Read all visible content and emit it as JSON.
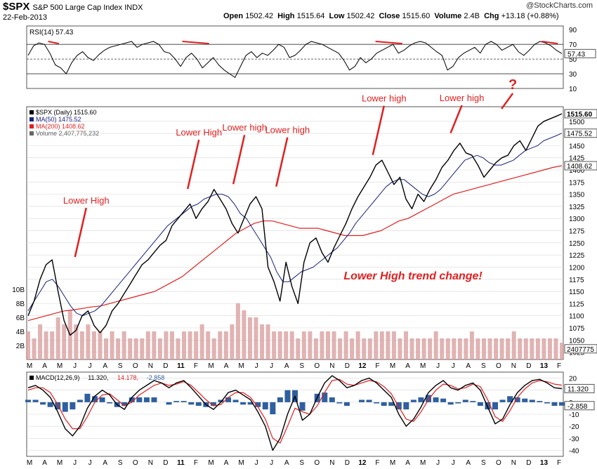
{
  "header": {
    "symbol": "$SPX",
    "name": "S&P 500 Large Cap Index",
    "exchange": "INDX",
    "date": "22-Feb-2013",
    "open_label": "Open",
    "open": "1502.42",
    "high_label": "High",
    "high": "1515.64",
    "low_label": "Low",
    "low": "1502.42",
    "close_label": "Close",
    "close": "1515.60",
    "volume_label": "Volume",
    "volume": "2.4B",
    "chg_label": "Chg",
    "chg": "+13.18 (+0.88%)",
    "credit": "@StockCharts.com"
  },
  "colors": {
    "price": "#000000",
    "ma50": "#1a237e",
    "ma200": "#e02020",
    "volume": "#d9a0a0",
    "macd_hist": "#2f5f9f",
    "annotation": "#e02020",
    "grid": "#d8d8d8"
  },
  "chart_data": [
    {
      "id": "rsi",
      "type": "line",
      "legend": "RSI(14) 57.43",
      "y_ticks": [
        90,
        70,
        50,
        30,
        10
      ],
      "ylim": [
        10,
        95
      ],
      "reference_lines": [
        70,
        50,
        30
      ],
      "last_value": "57.43",
      "series": [
        {
          "values": [
            55,
            68,
            72,
            70,
            58,
            42,
            38,
            30,
            45,
            55,
            60,
            52,
            48,
            56,
            62,
            66,
            68,
            70,
            72,
            74,
            66,
            70,
            72,
            74,
            70,
            60,
            58,
            50,
            40,
            52,
            58,
            50,
            38,
            45,
            52,
            42,
            35,
            30,
            25,
            40,
            55,
            60,
            52,
            58,
            55,
            62,
            70,
            66,
            52,
            55,
            62,
            70,
            74,
            72,
            70,
            66,
            62,
            58,
            48,
            35,
            40,
            52,
            45,
            50,
            58,
            62,
            66,
            70,
            58,
            62,
            68,
            72,
            74,
            72,
            66,
            60,
            55,
            35,
            40,
            52,
            58,
            62,
            66,
            58,
            70,
            74,
            70,
            62,
            66,
            70,
            60,
            55,
            62,
            70,
            74,
            72,
            68,
            62,
            57.43
          ]
        }
      ]
    },
    {
      "id": "price",
      "type": "line",
      "legend": [
        {
          "name": "$SPX (Daily) 1515.60",
          "color": "#000000"
        },
        {
          "name": "MA(50) 1475.52",
          "color": "#1a237e"
        },
        {
          "name": "MA(200) 1408.62",
          "color": "#e02020"
        },
        {
          "name": "Volume 2,407,775,232",
          "color": "#888888"
        }
      ],
      "x_labels": [
        "M",
        "A",
        "M",
        "J",
        "J",
        "A",
        "S",
        "O",
        "N",
        "D",
        "11",
        "F",
        "M",
        "A",
        "M",
        "J",
        "J",
        "A",
        "S",
        "O",
        "N",
        "D",
        "12",
        "F",
        "M",
        "A",
        "M",
        "J",
        "J",
        "A",
        "S",
        "O",
        "N",
        "D",
        "13",
        "F"
      ],
      "y_ticks": [
        1500,
        1475,
        1450,
        1425,
        1400,
        1375,
        1350,
        1325,
        1300,
        1275,
        1250,
        1225,
        1200,
        1175,
        1150,
        1125,
        1100,
        1075,
        1050,
        1025
      ],
      "ylim": [
        1010,
        1530
      ],
      "volume_ticks": [
        "10B",
        "8B",
        "6B",
        "4B",
        "2B"
      ],
      "volume_max": 12,
      "price_tags": [
        {
          "value": 1515.6,
          "label": "1515.60"
        },
        {
          "value": 1475.52,
          "label": "1475.52"
        },
        {
          "value": 1408.62,
          "label": "1408.62"
        },
        {
          "value": 1032,
          "label": "2407775"
        }
      ],
      "series": [
        {
          "name": "$SPX",
          "values": [
            1100,
            1130,
            1175,
            1205,
            1215,
            1150,
            1090,
            1060,
            1070,
            1100,
            1110,
            1080,
            1065,
            1080,
            1110,
            1125,
            1145,
            1165,
            1185,
            1205,
            1215,
            1230,
            1245,
            1255,
            1285,
            1300,
            1315,
            1330,
            1300,
            1320,
            1335,
            1360,
            1340,
            1320,
            1290,
            1270,
            1300,
            1330,
            1345,
            1320,
            1200,
            1170,
            1130,
            1210,
            1160,
            1125,
            1210,
            1250,
            1260,
            1230,
            1210,
            1240,
            1265,
            1290,
            1320,
            1345,
            1365,
            1385,
            1410,
            1420,
            1395,
            1370,
            1385,
            1340,
            1320,
            1350,
            1335,
            1360,
            1380,
            1405,
            1420,
            1440,
            1455,
            1435,
            1430,
            1410,
            1385,
            1400,
            1415,
            1425,
            1430,
            1450,
            1460,
            1440,
            1465,
            1490,
            1500,
            1505,
            1510,
            1515.6
          ]
        },
        {
          "name": "MA(50)",
          "values": [
            1110,
            1130,
            1150,
            1170,
            1175,
            1160,
            1140,
            1120,
            1105,
            1100,
            1105,
            1110,
            1120,
            1135,
            1150,
            1165,
            1180,
            1195,
            1210,
            1225,
            1240,
            1255,
            1270,
            1285,
            1295,
            1305,
            1315,
            1325,
            1330,
            1340,
            1345,
            1350,
            1350,
            1345,
            1330,
            1310,
            1300,
            1280,
            1260,
            1240,
            1220,
            1190,
            1170,
            1170,
            1180,
            1190,
            1195,
            1200,
            1210,
            1220,
            1230,
            1240,
            1255,
            1270,
            1290,
            1305,
            1320,
            1335,
            1350,
            1365,
            1375,
            1380,
            1380,
            1370,
            1360,
            1350,
            1345,
            1350,
            1360,
            1375,
            1390,
            1405,
            1420,
            1425,
            1430,
            1425,
            1415,
            1410,
            1410,
            1415,
            1420,
            1430,
            1440,
            1445,
            1450,
            1460,
            1465,
            1470,
            1475.52
          ]
        },
        {
          "name": "MA(200)",
          "values": [
            1090,
            1095,
            1100,
            1105,
            1110,
            1112,
            1115,
            1118,
            1120,
            1125,
            1130,
            1135,
            1140,
            1145,
            1150,
            1160,
            1170,
            1180,
            1195,
            1210,
            1225,
            1240,
            1255,
            1270,
            1280,
            1290,
            1295,
            1295,
            1290,
            1285,
            1280,
            1280,
            1280,
            1275,
            1270,
            1265,
            1265,
            1265,
            1270,
            1275,
            1285,
            1295,
            1300,
            1310,
            1320,
            1330,
            1340,
            1350,
            1355,
            1360,
            1365,
            1370,
            1375,
            1380,
            1385,
            1390,
            1395,
            1400,
            1405,
            1408.62
          ]
        },
        {
          "name": "Volume",
          "values": [
            4,
            3,
            5,
            4,
            4,
            6,
            5,
            7,
            5,
            4,
            5,
            4,
            4,
            3,
            4,
            3,
            4,
            3,
            3,
            3,
            4,
            4,
            3,
            4,
            4,
            3,
            4,
            4,
            4,
            5,
            4,
            3,
            4,
            4,
            5,
            8,
            7,
            6,
            6,
            5,
            5,
            4,
            4,
            4,
            4,
            3,
            4,
            4,
            3,
            4,
            4,
            4,
            3,
            4,
            3,
            4,
            3,
            3,
            4,
            4,
            4,
            4,
            3,
            4,
            3,
            3,
            3,
            3,
            4,
            3,
            3,
            3,
            3,
            3,
            4,
            3,
            3,
            3,
            3,
            3,
            3,
            4,
            3,
            3,
            3,
            3,
            3,
            3,
            3,
            2.4
          ]
        }
      ],
      "annotations": [
        {
          "text": "Lower High",
          "at_x": 0.09,
          "at_y": 1215
        },
        {
          "text": "Lower High",
          "at_x": 0.3,
          "at_y": 1355
        },
        {
          "text": "Lower high",
          "at_x": 0.385,
          "at_y": 1365
        },
        {
          "text": "Lower high",
          "at_x": 0.465,
          "at_y": 1360
        },
        {
          "text": "Lower high",
          "at_x": 0.645,
          "at_y": 1425
        },
        {
          "text": "Lower high",
          "at_x": 0.79,
          "at_y": 1470
        },
        {
          "text": "?",
          "at_x": 0.885,
          "at_y": 1520
        }
      ],
      "callout": "Lower High trend change!"
    },
    {
      "id": "macd",
      "type": "line",
      "legend": "MACD(12,26,9) 11.320, 14.178, -2.858",
      "legend_parts": [
        "MACD(12,26,9)",
        "11.320,",
        "14.178,",
        "-2.858"
      ],
      "y_ticks": [
        20,
        10,
        0,
        -10,
        -20,
        -30,
        -40
      ],
      "ylim": [
        -45,
        25
      ],
      "last_tags": [
        "11.320",
        "-2.858"
      ],
      "x_labels": [
        "M",
        "A",
        "M",
        "J",
        "J",
        "A",
        "S",
        "O",
        "N",
        "D",
        "11",
        "F",
        "M",
        "A",
        "M",
        "J",
        "J",
        "A",
        "S",
        "O",
        "N",
        "D",
        "12",
        "F",
        "M",
        "A",
        "M",
        "J",
        "J",
        "A",
        "S",
        "O",
        "N",
        "D",
        "13",
        "F"
      ],
      "series": [
        {
          "name": "MACD",
          "values": [
            12,
            14,
            10,
            4,
            -8,
            -22,
            -28,
            -20,
            -5,
            5,
            10,
            6,
            -2,
            -6,
            4,
            10,
            14,
            18,
            16,
            12,
            16,
            18,
            12,
            5,
            -2,
            -6,
            0,
            8,
            10,
            6,
            2,
            -8,
            -20,
            -40,
            -30,
            -10,
            5,
            -15,
            -10,
            4,
            16,
            22,
            18,
            12,
            14,
            18,
            20,
            16,
            10,
            4,
            -10,
            -20,
            -14,
            -4,
            8,
            14,
            18,
            12,
            10,
            14,
            16,
            10,
            -4,
            -18,
            -14,
            -2,
            8,
            14,
            18,
            19,
            16,
            12,
            11.32
          ]
        },
        {
          "name": "Signal",
          "values": [
            10,
            12,
            12,
            8,
            -2,
            -14,
            -22,
            -22,
            -12,
            0,
            6,
            7,
            2,
            -3,
            0,
            6,
            10,
            14,
            16,
            14,
            15,
            17,
            14,
            8,
            2,
            -3,
            -2,
            4,
            8,
            8,
            4,
            -4,
            -14,
            -30,
            -34,
            -20,
            -5,
            -8,
            -10,
            -3,
            8,
            18,
            19,
            15,
            14,
            16,
            18,
            17,
            13,
            7,
            -4,
            -14,
            -16,
            -8,
            2,
            10,
            15,
            14,
            11,
            12,
            15,
            13,
            2,
            -12,
            -16,
            -7,
            4,
            11,
            16,
            18,
            17,
            15,
            14.178
          ]
        },
        {
          "name": "Histogram",
          "values": [
            2,
            2,
            -2,
            -4,
            -6,
            -8,
            -6,
            2,
            7,
            5,
            4,
            -1,
            -4,
            -3,
            4,
            4,
            4,
            4,
            0,
            -2,
            1,
            1,
            -2,
            -3,
            -4,
            -3,
            2,
            4,
            2,
            -2,
            -2,
            -4,
            -6,
            -10,
            4,
            10,
            10,
            -7,
            0,
            7,
            8,
            4,
            -1,
            -3,
            0,
            2,
            2,
            -1,
            -3,
            -3,
            -6,
            -6,
            2,
            4,
            6,
            4,
            3,
            -2,
            -1,
            2,
            1,
            -3,
            -6,
            -6,
            2,
            5,
            4,
            3,
            2,
            1,
            -1,
            -3,
            -2.858
          ]
        }
      ]
    }
  ]
}
